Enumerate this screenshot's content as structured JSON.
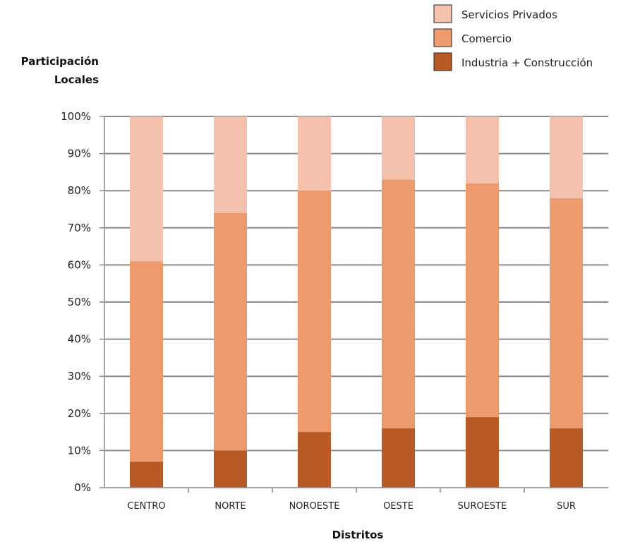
{
  "chart_data": {
    "type": "bar",
    "stacked": true,
    "percent": true,
    "categories": [
      "CENTRO",
      "NORTE",
      "NOROESTE",
      "OESTE",
      "SUROESTE",
      "SUR"
    ],
    "series": [
      {
        "name": "Industria + Construcción",
        "values": [
          7,
          10,
          15,
          16,
          19,
          16
        ],
        "color": "#b85a26"
      },
      {
        "name": "Comercio",
        "values": [
          54,
          64,
          65,
          67,
          63,
          62
        ],
        "color": "#ee9a6c"
      },
      {
        "name": "Servicios Privados",
        "values": [
          39,
          26,
          20,
          17,
          18,
          22
        ],
        "color": "#f4c1ac"
      }
    ],
    "ylabel_lines": [
      "Participación",
      "Locales"
    ],
    "xlabel": "Distritos",
    "ylim": [
      0,
      100
    ],
    "yticks": [
      "0%",
      "10%",
      "20%",
      "30%",
      "40%",
      "50%",
      "60%",
      "70%",
      "80%",
      "90%",
      "100%"
    ],
    "grid": true,
    "legend": "top-right",
    "legend_order": [
      "Servicios Privados",
      "Comercio",
      "Industria + Construcción"
    ]
  }
}
